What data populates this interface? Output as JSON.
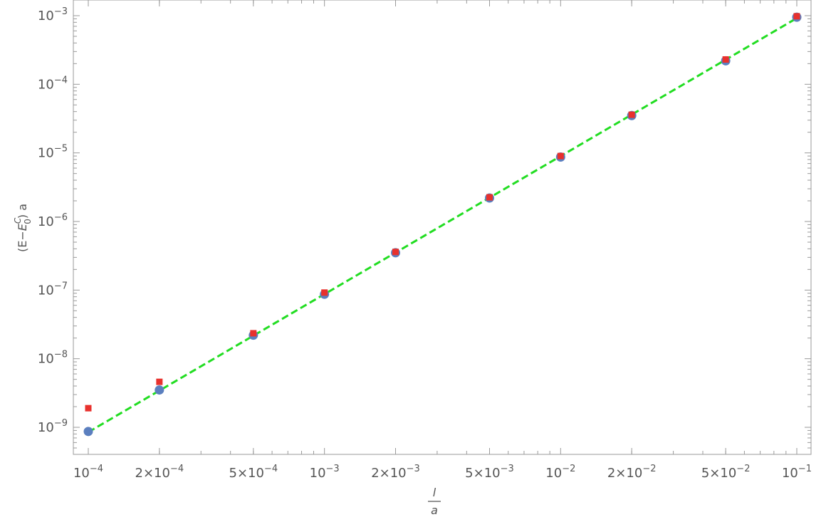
{
  "chart_data": {
    "type": "scatter",
    "x_scale": "log",
    "y_scale": "log",
    "xlim": [
      0.0001,
      0.1
    ],
    "ylim": [
      4e-10,
      0.001
    ],
    "xlabel": {
      "numerator": "l",
      "denominator": "a"
    },
    "ylabel": {
      "prefix": "(E−",
      "symbol": "E",
      "superscript": "C",
      "subscript": "0",
      "suffix": ") a"
    },
    "x_ticks": [
      {
        "value": 0.0001,
        "coef": "",
        "exp": "−4"
      },
      {
        "value": 0.0002,
        "coef": "2×",
        "exp": "−4"
      },
      {
        "value": 0.0005,
        "coef": "5×",
        "exp": "−4"
      },
      {
        "value": 0.001,
        "coef": "",
        "exp": "−3"
      },
      {
        "value": 0.002,
        "coef": "2×",
        "exp": "−3"
      },
      {
        "value": 0.005,
        "coef": "5×",
        "exp": "−3"
      },
      {
        "value": 0.01,
        "coef": "",
        "exp": "−2"
      },
      {
        "value": 0.02,
        "coef": "2×",
        "exp": "−2"
      },
      {
        "value": 0.05,
        "coef": "5×",
        "exp": "−2"
      },
      {
        "value": 0.1,
        "coef": "",
        "exp": "−1"
      }
    ],
    "y_ticks": [
      {
        "value": 1e-09,
        "exp": "−9"
      },
      {
        "value": 1e-08,
        "exp": "−8"
      },
      {
        "value": 1e-07,
        "exp": "−7"
      },
      {
        "value": 1e-06,
        "exp": "−6"
      },
      {
        "value": 1e-05,
        "exp": "−5"
      },
      {
        "value": 0.0001,
        "exp": "−4"
      },
      {
        "value": 0.001,
        "exp": "−3"
      }
    ],
    "series": [
      {
        "marker": "circle",
        "color": "#5b7fbf",
        "x": [
          0.0001,
          0.0002,
          0.0005,
          0.001,
          0.002,
          0.005,
          0.01,
          0.02,
          0.05,
          0.1
        ],
        "y": [
          8.7e-10,
          3.5e-09,
          2.2e-08,
          8.7e-08,
          3.5e-07,
          2.2e-06,
          8.7e-06,
          3.5e-05,
          0.00022,
          0.00095
        ]
      },
      {
        "marker": "square",
        "color": "#e8312d",
        "x": [
          0.0001,
          0.0002,
          0.0005,
          0.001,
          0.002,
          0.005,
          0.01,
          0.02,
          0.05,
          0.1
        ],
        "y": [
          1.9e-09,
          4.6e-09,
          2.35e-08,
          9.2e-08,
          3.6e-07,
          2.25e-06,
          9e-06,
          3.6e-05,
          0.00023,
          0.00098
        ]
      }
    ],
    "fit_line": {
      "style": "dashed",
      "color": "#22dd22",
      "x": [
        0.0001,
        0.1
      ],
      "y": [
        8.5e-10,
        0.00092
      ]
    },
    "grid": false
  }
}
